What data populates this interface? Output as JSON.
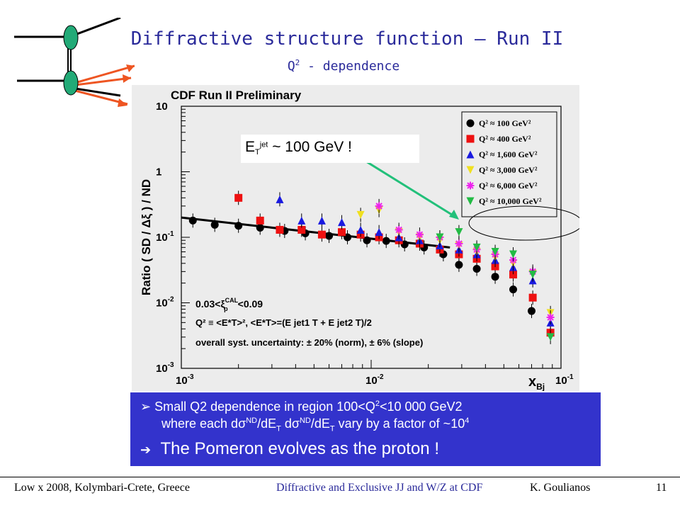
{
  "slide": {
    "title": "Diffractive structure function – Run II",
    "subtitle_q": "Q",
    "subtitle_sup": "2",
    "subtitle_rest": " - dependence",
    "et_label": {
      "e": "E",
      "sub": "T",
      "sup": "jet",
      "rest": " ~ 100 GeV !"
    },
    "bullet_box": {
      "line1_a": "Small Q2 dependence in region 100<Q",
      "line1_sup": "2",
      "line1_b": "<10 000 GeV2",
      "line2_a": "where each d",
      "line2_sigma1": "σ",
      "line2_sup1": "ND",
      "line2_b": "/dE",
      "line2_sub1": "T",
      "line2_c": " d",
      "line2_sigma2": "σ",
      "line2_sup2": "ND",
      "line2_d": "/dE",
      "line2_sub2": "T",
      "line2_e": " vary by a factor of ~10",
      "line2_sup3": "4",
      "arrow": "➔",
      "line3": "The Pomeron evolves as the proton !"
    },
    "footer": {
      "left": "Low x 2008, Kolymbari-Crete, Greece",
      "center": "Diffractive and Exclusive JJ and W/Z at CDF",
      "author": "K.  Goulianos",
      "page": "11"
    },
    "colors": {
      "title": "#2a2a9a",
      "box": "#3333cc",
      "arrow_green": "#22c07a",
      "logo_green": "#22aa77",
      "logo_orange": "#ee5522"
    }
  },
  "chart_data": {
    "type": "scatter",
    "title": "CDF Run II Preliminary",
    "xlabel_main": "x",
    "xlabel_sub": "Bj",
    "ylabel": "Ratio  ( SD /  Δξ ) / ND",
    "x_scale": "log",
    "y_scale": "log",
    "xlim": [
      0.001,
      0.1
    ],
    "ylim": [
      0.001,
      10
    ],
    "x_ticks": [
      {
        "v": 0.001,
        "m": "10",
        "e": "-3"
      },
      {
        "v": 0.01,
        "m": "10",
        "e": "-2"
      },
      {
        "v": 0.1,
        "m": "10",
        "e": "-1"
      }
    ],
    "y_ticks": [
      {
        "v": 0.001,
        "m": "10",
        "e": "-3"
      },
      {
        "v": 0.01,
        "m": "10",
        "e": "-2"
      },
      {
        "v": 0.1,
        "m": "10",
        "e": "-1"
      },
      {
        "v": 1,
        "m": "1",
        "e": ""
      },
      {
        "v": 10,
        "m": "10",
        "e": ""
      }
    ],
    "annotations": {
      "xi_range_a": "0.03<",
      "xi_sym": "ξ",
      "xi_sup": "CAL",
      "xi_sub": "p",
      "xi_range_b": "<0.09",
      "q2_def": "Q² ≡ <E*T>²,  <E*T>=(E jet1 T + E jet2 T)/2",
      "syst": "overall syst. uncertainty: ± 20% (norm), ± 6% (slope)"
    },
    "fit_line": {
      "x": [
        0.001,
        0.026
      ],
      "y": [
        0.2,
        0.07
      ]
    },
    "series": [
      {
        "name": "Q² ≈ 100 GeV²",
        "color": "#000000",
        "marker": "circle",
        "x": [
          0.00115,
          0.0015,
          0.002,
          0.0026,
          0.0035,
          0.0045,
          0.006,
          0.0075,
          0.0095,
          0.012,
          0.015,
          0.019,
          0.024,
          0.029,
          0.036,
          0.045,
          0.056,
          0.07
        ],
        "y": [
          0.18,
          0.155,
          0.15,
          0.14,
          0.125,
          0.115,
          0.105,
          0.1,
          0.09,
          0.088,
          0.078,
          0.07,
          0.055,
          0.038,
          0.033,
          0.025,
          0.016,
          0.0075
        ]
      },
      {
        "name": "Q² ≈ 400 GeV²",
        "color": "#ee1111",
        "marker": "square",
        "x": [
          0.002,
          0.0026,
          0.0033,
          0.0043,
          0.0055,
          0.007,
          0.0088,
          0.011,
          0.014,
          0.018,
          0.023,
          0.029,
          0.036,
          0.045,
          0.056,
          0.071,
          0.088
        ],
        "y": [
          0.4,
          0.18,
          0.13,
          0.13,
          0.11,
          0.12,
          0.11,
          0.1,
          0.09,
          0.08,
          0.065,
          0.055,
          0.047,
          0.036,
          0.027,
          0.012,
          0.0035
        ]
      },
      {
        "name": "Q² ≈ 1,600 GeV²",
        "color": "#1a1ae0",
        "marker": "triangle-up",
        "x": [
          0.0033,
          0.0043,
          0.0055,
          0.007,
          0.0088,
          0.011,
          0.014,
          0.018,
          0.023,
          0.029,
          0.036,
          0.045,
          0.056,
          0.071,
          0.088
        ],
        "y": [
          0.38,
          0.18,
          0.18,
          0.17,
          0.13,
          0.12,
          0.1,
          0.09,
          0.075,
          0.065,
          0.055,
          0.045,
          0.035,
          0.022,
          0.005
        ]
      },
      {
        "name": "Q² ≈ 3,000 GeV²",
        "color": "#f0e020",
        "marker": "triangle-down",
        "x": [
          0.0088,
          0.011,
          0.014,
          0.018,
          0.023,
          0.029,
          0.036,
          0.045,
          0.056,
          0.071,
          0.088
        ],
        "y": [
          0.22,
          0.26,
          0.12,
          0.1,
          0.09,
          0.075,
          0.06,
          0.05,
          0.04,
          0.028,
          0.007
        ]
      },
      {
        "name": "Q² ≈ 6,000 GeV²",
        "color": "#ee22ee",
        "marker": "star",
        "x": [
          0.011,
          0.014,
          0.018,
          0.023,
          0.029,
          0.036,
          0.045,
          0.056,
          0.071,
          0.088
        ],
        "y": [
          0.3,
          0.13,
          0.11,
          0.1,
          0.08,
          0.065,
          0.055,
          0.045,
          0.03,
          0.006
        ]
      },
      {
        "name": "Q² ≈ 10,000 GeV²",
        "color": "#22bb44",
        "marker": "triangle-down",
        "x": [
          0.023,
          0.029,
          0.036,
          0.045,
          0.056,
          0.071,
          0.088
        ],
        "y": [
          0.1,
          0.12,
          0.07,
          0.06,
          0.055,
          0.027,
          0.003
        ]
      }
    ],
    "legend_position": "top-right"
  }
}
